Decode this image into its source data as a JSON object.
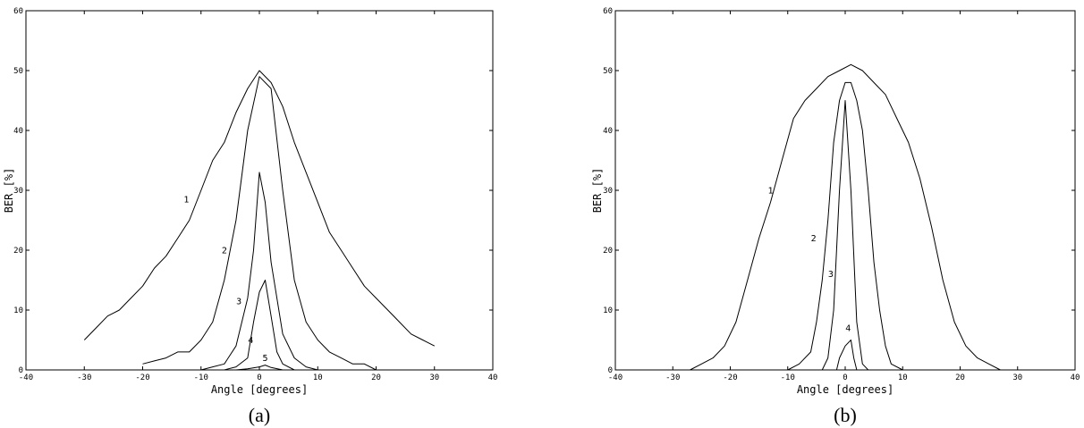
{
  "chart_data": [
    {
      "type": "line",
      "caption": "(a)",
      "xlabel": "Angle [degrees]",
      "ylabel": "BER [%]",
      "xlim": [
        -40,
        40
      ],
      "ylim": [
        0,
        60
      ],
      "xticks": [
        -40,
        -30,
        -20,
        -10,
        0,
        10,
        20,
        30,
        40
      ],
      "yticks": [
        0,
        10,
        20,
        30,
        40,
        50,
        60
      ],
      "grid": false,
      "legend": "none",
      "curve_labels": [
        {
          "text": "1",
          "x": -12.5,
          "y": 28
        },
        {
          "text": "2",
          "x": -6,
          "y": 19.5
        },
        {
          "text": "3",
          "x": -3.5,
          "y": 11
        },
        {
          "text": "4",
          "x": -1.5,
          "y": 4.5
        },
        {
          "text": "5",
          "x": 1,
          "y": 1.5
        }
      ],
      "series": [
        {
          "x": [
            -30,
            -28,
            -26,
            -24,
            -22,
            -20,
            -18,
            -16,
            -14,
            -12,
            -10,
            -8,
            -6,
            -4,
            -2,
            0,
            2,
            4,
            6,
            8,
            10,
            12,
            14,
            16,
            18,
            20,
            22,
            24,
            26,
            28,
            30
          ],
          "values": [
            5,
            7,
            9,
            10,
            12,
            14,
            17,
            19,
            22,
            25,
            30,
            35,
            38,
            43,
            47,
            50,
            48,
            44,
            38,
            33,
            28,
            23,
            20,
            17,
            14,
            12,
            10,
            8,
            6,
            5,
            4
          ]
        },
        {
          "x": [
            -20,
            -18,
            -16,
            -14,
            -12,
            -10,
            -8,
            -6,
            -4,
            -2,
            0,
            2,
            4,
            6,
            8,
            10,
            12,
            14,
            16,
            18,
            20
          ],
          "values": [
            1,
            1.5,
            2,
            3,
            3,
            5,
            8,
            15,
            25,
            40,
            49,
            47,
            30,
            15,
            8,
            5,
            3,
            2,
            1,
            1,
            0
          ]
        },
        {
          "x": [
            -10,
            -8,
            -6,
            -4,
            -2,
            -1,
            0,
            1,
            2,
            4,
            6,
            8,
            10
          ],
          "values": [
            0,
            0.5,
            1,
            4,
            12,
            20,
            33,
            28,
            18,
            6,
            2,
            0.5,
            0
          ]
        },
        {
          "x": [
            -6,
            -4,
            -2,
            -1,
            0,
            1,
            2,
            3,
            4,
            6
          ],
          "values": [
            0,
            0.5,
            2,
            8,
            13,
            15,
            9,
            3,
            1,
            0
          ]
        },
        {
          "x": [
            -4,
            -2,
            0,
            1,
            2,
            4
          ],
          "values": [
            0,
            0.2,
            0.5,
            0.8,
            0.4,
            0
          ]
        }
      ]
    },
    {
      "type": "line",
      "caption": "(b)",
      "xlabel": "Angle [degrees]",
      "ylabel": "BER [%]",
      "xlim": [
        -40,
        40
      ],
      "ylim": [
        0,
        60
      ],
      "xticks": [
        -40,
        -30,
        -20,
        -10,
        0,
        10,
        20,
        30,
        40
      ],
      "yticks": [
        0,
        10,
        20,
        30,
        40,
        50,
        60
      ],
      "grid": false,
      "legend": "none",
      "curve_labels": [
        {
          "text": "1",
          "x": -13,
          "y": 29.5
        },
        {
          "text": "2",
          "x": -5.5,
          "y": 21.5
        },
        {
          "text": "3",
          "x": -2.5,
          "y": 15.5
        },
        {
          "text": "4",
          "x": 0.5,
          "y": 6.5
        }
      ],
      "series": [
        {
          "x": [
            -27,
            -25,
            -23,
            -21,
            -19,
            -17,
            -15,
            -13,
            -11,
            -9,
            -7,
            -5,
            -3,
            -1,
            1,
            3,
            5,
            7,
            9,
            11,
            13,
            15,
            17,
            19,
            21,
            23,
            25,
            27
          ],
          "values": [
            0,
            1,
            2,
            4,
            8,
            15,
            22,
            28,
            35,
            42,
            45,
            47,
            49,
            50,
            51,
            50,
            48,
            46,
            42,
            38,
            32,
            24,
            15,
            8,
            4,
            2,
            1,
            0
          ]
        },
        {
          "x": [
            -10,
            -8,
            -6,
            -5,
            -4,
            -3,
            -2,
            -1,
            0,
            1,
            2,
            3,
            4,
            5,
            6,
            7,
            8,
            10
          ],
          "values": [
            0,
            1,
            3,
            8,
            15,
            25,
            38,
            45,
            48,
            48,
            45,
            40,
            30,
            18,
            10,
            4,
            1,
            0
          ]
        },
        {
          "x": [
            -4,
            -3,
            -2,
            -1,
            0,
            1,
            2,
            3,
            4
          ],
          "values": [
            0,
            2,
            10,
            30,
            45,
            30,
            8,
            1,
            0
          ]
        },
        {
          "x": [
            -1.5,
            -1,
            0,
            1,
            1.5,
            2
          ],
          "values": [
            0,
            2,
            4,
            5,
            2,
            0
          ]
        }
      ]
    }
  ]
}
